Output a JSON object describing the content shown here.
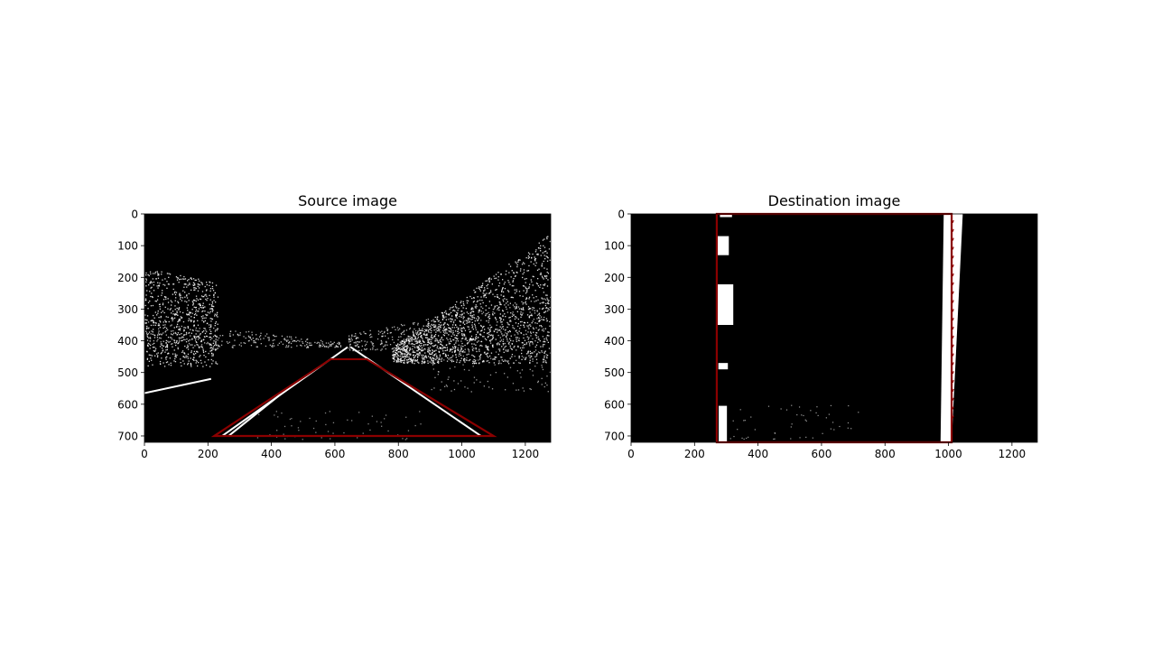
{
  "colors": {
    "background": "#ffffff",
    "image_background": "#000000",
    "edge_pixels": "#ffffff",
    "outline": "#8b0000",
    "axis": "#000000"
  },
  "chart_data": [
    {
      "type": "image",
      "title": "Source image",
      "xlim": [
        0,
        1280
      ],
      "ylim": [
        720,
        0
      ],
      "xticks": [
        0,
        200,
        400,
        600,
        800,
        1000,
        1200
      ],
      "yticks": [
        0,
        100,
        200,
        300,
        400,
        500,
        600,
        700
      ],
      "grid": false,
      "outline_polygon": [
        [
          220,
          700
        ],
        [
          587,
          458
        ],
        [
          700,
          458
        ],
        [
          1100,
          700
        ]
      ],
      "lane_lines": [
        {
          "from": [
            245,
            700
          ],
          "to": [
            640,
            420
          ]
        },
        {
          "from": [
            265,
            700
          ],
          "to": [
            430,
            568
          ]
        },
        {
          "from": [
            1060,
            700
          ],
          "to": [
            650,
            420
          ]
        },
        {
          "from": [
            0,
            565
          ],
          "to": [
            210,
            520
          ]
        }
      ]
    },
    {
      "type": "image",
      "title": "Destination image",
      "xlim": [
        0,
        1280
      ],
      "ylim": [
        720,
        0
      ],
      "xticks": [
        0,
        200,
        400,
        600,
        800,
        1000,
        1200
      ],
      "yticks": [
        0,
        100,
        200,
        300,
        400,
        500,
        600,
        700
      ],
      "grid": false,
      "outline_polygon": [
        [
          270,
          720
        ],
        [
          270,
          0
        ],
        [
          1010,
          0
        ],
        [
          1010,
          720
        ]
      ],
      "lane_segments": [
        {
          "x": [
            280,
            318
          ],
          "y": [
            0,
            10
          ]
        },
        {
          "x": [
            268,
            308
          ],
          "y": [
            70,
            130
          ]
        },
        {
          "x": [
            268,
            322
          ],
          "y": [
            222,
            350
          ]
        },
        {
          "x": [
            275,
            305
          ],
          "y": [
            470,
            490
          ]
        },
        {
          "x": [
            276,
            302
          ],
          "y": [
            605,
            720
          ]
        },
        {
          "x": [
            975,
            1050
          ],
          "y": [
            0,
            720
          ]
        }
      ]
    }
  ]
}
